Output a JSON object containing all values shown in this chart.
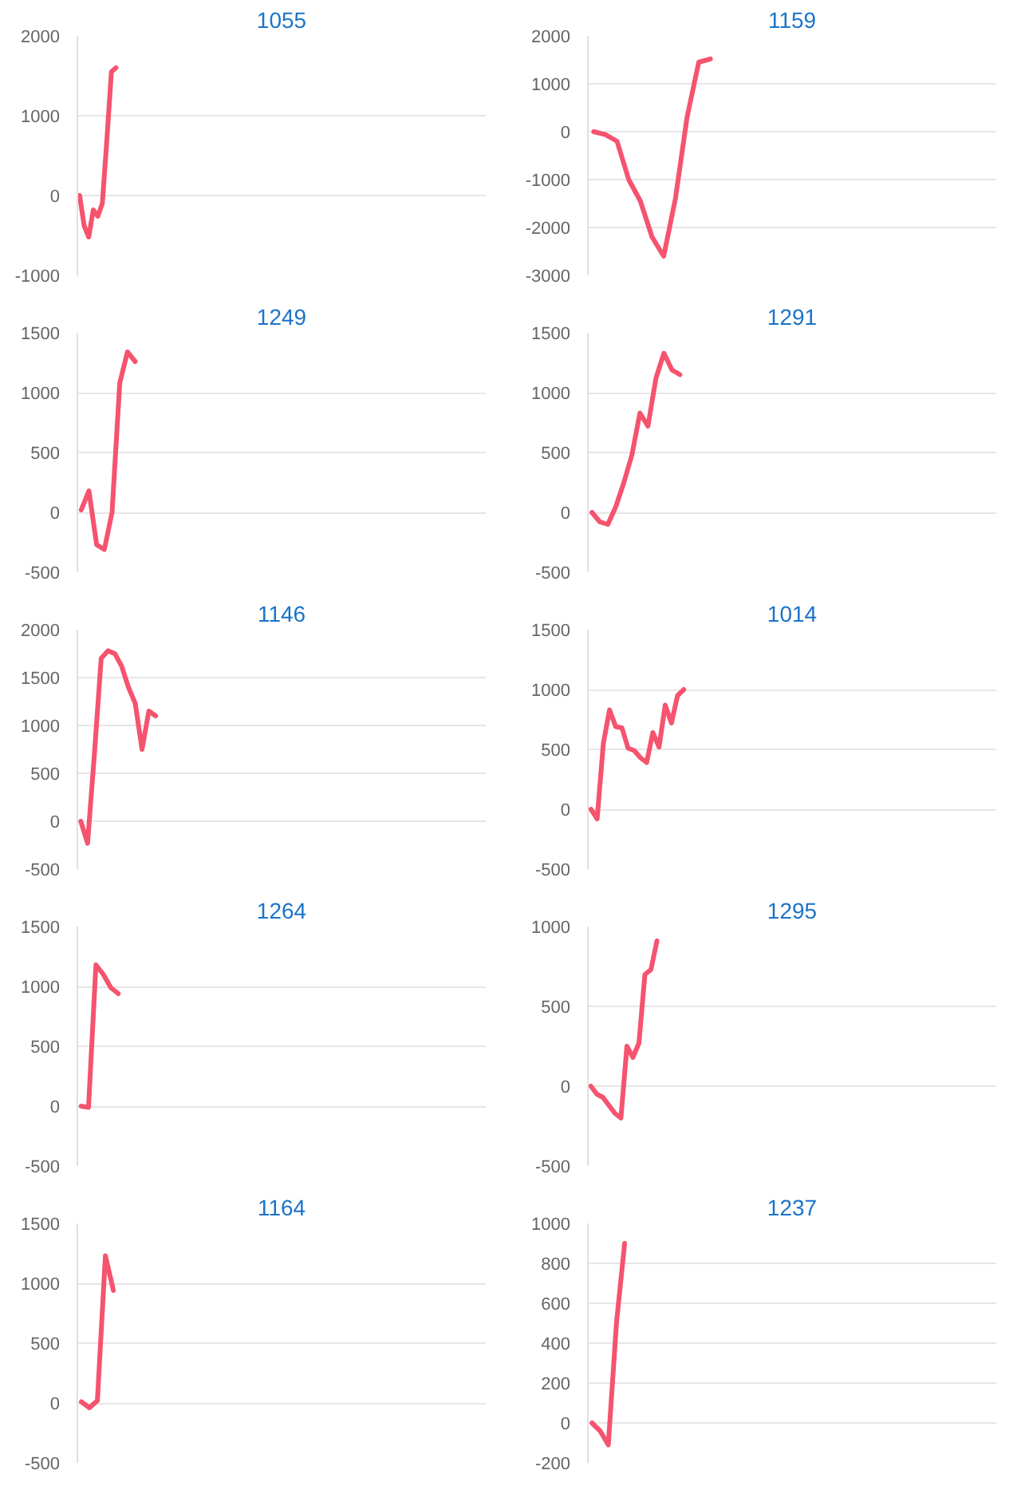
{
  "chart_data": [
    {
      "type": "line",
      "title": "1055",
      "color": "#f5536e",
      "grid": "y",
      "tick_labels": "y",
      "ylim": [
        -1000,
        2000
      ],
      "yticks": [
        -1000,
        0,
        1000,
        2000
      ],
      "categories": [
        null,
        null,
        null,
        null,
        null,
        null,
        null,
        null,
        null,
        null,
        null,
        null,
        null,
        null,
        null,
        null,
        null,
        null,
        null,
        null,
        null,
        null,
        null,
        null,
        null,
        null,
        null,
        null,
        null,
        null,
        null,
        null,
        null,
        null,
        null,
        null,
        null,
        null,
        null,
        null,
        null,
        null,
        null,
        null,
        null,
        null,
        null,
        null,
        null,
        null,
        null,
        null,
        null,
        null,
        null,
        null,
        null,
        null,
        null,
        null,
        null,
        null,
        null,
        null,
        null,
        null,
        null,
        null,
        null,
        null,
        null,
        null,
        null,
        null,
        null,
        null,
        null,
        null,
        null,
        null,
        null,
        null,
        null,
        null,
        null,
        null,
        null,
        null,
        null,
        null
      ],
      "values": [
        0,
        -380,
        -520,
        -180,
        -260,
        -100,
        700,
        1550,
        1600,
        null,
        null,
        null,
        null,
        null,
        null,
        null,
        null,
        null,
        null,
        null,
        null,
        null,
        null,
        null,
        null,
        null,
        null,
        null,
        null,
        null,
        null,
        null,
        null,
        null,
        null,
        null,
        null,
        null,
        null,
        null,
        null,
        null,
        null,
        null,
        null,
        null,
        null,
        null,
        null,
        null,
        null,
        null,
        null,
        null,
        null,
        null,
        null,
        null,
        null,
        null,
        null,
        null,
        null,
        null,
        null,
        null,
        null,
        null,
        null,
        null,
        null,
        null,
        null,
        null,
        null,
        null,
        null,
        null,
        null,
        null,
        null,
        null,
        null,
        null,
        null,
        null,
        null,
        null,
        null,
        null
      ]
    },
    {
      "type": "line",
      "title": "1159",
      "color": "#f5536e",
      "grid": "y",
      "tick_labels": "y",
      "ylim": [
        -3000,
        2000
      ],
      "yticks": [
        -3000,
        -2000,
        -1000,
        0,
        1000,
        2000
      ],
      "categories": [
        null,
        null,
        null,
        null,
        null,
        null,
        null,
        null,
        null,
        null,
        null,
        null,
        null,
        null,
        null,
        null,
        null,
        null,
        null,
        null,
        null,
        null,
        null,
        null,
        null,
        null,
        null,
        null,
        null,
        null,
        null,
        null,
        null,
        null,
        null
      ],
      "values": [
        0,
        -60,
        -200,
        -1000,
        -1450,
        -2200,
        -2600,
        -1400,
        300,
        1450,
        1520,
        null,
        null,
        null,
        null,
        null,
        null,
        null,
        null,
        null,
        null,
        null,
        null,
        null,
        null,
        null,
        null,
        null,
        null,
        null,
        null,
        null,
        null,
        null,
        null
      ]
    },
    {
      "type": "line",
      "title": "1249",
      "color": "#f5536e",
      "grid": "y",
      "tick_labels": "y",
      "ylim": [
        -500,
        1500
      ],
      "yticks": [
        -500,
        0,
        500,
        1000,
        1500
      ],
      "categories": [
        null,
        null,
        null,
        null,
        null,
        null,
        null,
        null,
        null,
        null,
        null,
        null,
        null,
        null,
        null,
        null,
        null,
        null,
        null,
        null,
        null,
        null,
        null,
        null,
        null,
        null,
        null,
        null,
        null,
        null,
        null,
        null,
        null,
        null,
        null,
        null,
        null,
        null,
        null,
        null,
        null,
        null,
        null,
        null,
        null,
        null,
        null,
        null,
        null,
        null,
        null,
        null,
        null
      ],
      "values": [
        20,
        180,
        -270,
        -310,
        0,
        1080,
        1340,
        1260,
        null,
        null,
        null,
        null,
        null,
        null,
        null,
        null,
        null,
        null,
        null,
        null,
        null,
        null,
        null,
        null,
        null,
        null,
        null,
        null,
        null,
        null,
        null,
        null,
        null,
        null,
        null,
        null,
        null,
        null,
        null,
        null,
        null,
        null,
        null,
        null,
        null,
        null,
        null,
        null,
        null,
        null,
        null,
        null,
        null
      ]
    },
    {
      "type": "line",
      "title": "1291",
      "color": "#f5536e",
      "grid": "y",
      "tick_labels": "y",
      "ylim": [
        -500,
        1500
      ],
      "yticks": [
        -500,
        0,
        500,
        1000,
        1500
      ],
      "categories": [
        null,
        null,
        null,
        null,
        null,
        null,
        null,
        null,
        null,
        null,
        null,
        null,
        null,
        null,
        null,
        null,
        null,
        null,
        null,
        null,
        null,
        null,
        null,
        null,
        null,
        null,
        null,
        null,
        null,
        null,
        null,
        null,
        null,
        null,
        null,
        null,
        null,
        null,
        null,
        null,
        null,
        null,
        null,
        null,
        null,
        null,
        null,
        null,
        null,
        null,
        null
      ],
      "values": [
        0,
        -80,
        -100,
        50,
        250,
        480,
        830,
        720,
        1120,
        1330,
        1190,
        1150,
        null,
        null,
        null,
        null,
        null,
        null,
        null,
        null,
        null,
        null,
        null,
        null,
        null,
        null,
        null,
        null,
        null,
        null,
        null,
        null,
        null,
        null,
        null,
        null,
        null,
        null,
        null,
        null,
        null,
        null,
        null,
        null,
        null,
        null,
        null,
        null,
        null,
        null,
        null
      ]
    },
    {
      "type": "line",
      "title": "1146",
      "color": "#f5536e",
      "grid": "y",
      "tick_labels": "y",
      "ylim": [
        -500,
        2000
      ],
      "yticks": [
        -500,
        0,
        500,
        1000,
        1500,
        2000
      ],
      "categories": [
        null,
        null,
        null,
        null,
        null,
        null,
        null,
        null,
        null,
        null,
        null,
        null,
        null,
        null,
        null,
        null,
        null,
        null,
        null,
        null,
        null,
        null,
        null,
        null,
        null,
        null,
        null,
        null,
        null,
        null,
        null,
        null,
        null,
        null,
        null,
        null,
        null,
        null,
        null,
        null,
        null,
        null,
        null,
        null,
        null,
        null,
        null,
        null,
        null,
        null,
        null,
        null,
        null,
        null,
        null,
        null,
        null,
        null,
        null,
        null
      ],
      "values": [
        0,
        -230,
        700,
        1700,
        1780,
        1750,
        1620,
        1400,
        1230,
        750,
        1150,
        1100,
        null,
        null,
        null,
        null,
        null,
        null,
        null,
        null,
        null,
        null,
        null,
        null,
        null,
        null,
        null,
        null,
        null,
        null,
        null,
        null,
        null,
        null,
        null,
        null,
        null,
        null,
        null,
        null,
        null,
        null,
        null,
        null,
        null,
        null,
        null,
        null,
        null,
        null,
        null,
        null,
        null,
        null,
        null,
        null,
        null,
        null,
        null,
        null
      ]
    },
    {
      "type": "line",
      "title": "1014",
      "color": "#f5536e",
      "grid": "y",
      "tick_labels": "y",
      "ylim": [
        -500,
        1500
      ],
      "yticks": [
        -500,
        0,
        500,
        1000,
        1500
      ],
      "categories": [
        null,
        null,
        null,
        null,
        null,
        null,
        null,
        null,
        null,
        null,
        null,
        null,
        null,
        null,
        null,
        null,
        null,
        null,
        null,
        null,
        null,
        null,
        null,
        null,
        null,
        null,
        null,
        null,
        null,
        null,
        null,
        null,
        null,
        null,
        null,
        null,
        null,
        null,
        null,
        null,
        null,
        null,
        null,
        null,
        null,
        null,
        null,
        null,
        null,
        null,
        null,
        null,
        null,
        null,
        null,
        null,
        null,
        null,
        null,
        null,
        null,
        null,
        null,
        null,
        null,
        null
      ],
      "values": [
        0,
        -80,
        550,
        830,
        690,
        680,
        510,
        490,
        430,
        390,
        640,
        520,
        870,
        720,
        950,
        1000,
        null,
        null,
        null,
        null,
        null,
        null,
        null,
        null,
        null,
        null,
        null,
        null,
        null,
        null,
        null,
        null,
        null,
        null,
        null,
        null,
        null,
        null,
        null,
        null,
        null,
        null,
        null,
        null,
        null,
        null,
        null,
        null,
        null,
        null,
        null,
        null,
        null,
        null,
        null,
        null,
        null,
        null,
        null,
        null,
        null,
        null,
        null,
        null,
        null,
        null
      ]
    },
    {
      "type": "line",
      "title": "1264",
      "color": "#f5536e",
      "grid": "y",
      "tick_labels": "y",
      "ylim": [
        -500,
        1500
      ],
      "yticks": [
        -500,
        0,
        500,
        1000,
        1500
      ],
      "categories": [
        null,
        null,
        null,
        null,
        null,
        null,
        null,
        null,
        null,
        null,
        null,
        null,
        null,
        null,
        null,
        null,
        null,
        null,
        null,
        null,
        null,
        null,
        null,
        null,
        null,
        null,
        null,
        null,
        null,
        null,
        null,
        null,
        null,
        null,
        null,
        null,
        null,
        null,
        null,
        null,
        null,
        null,
        null,
        null,
        null,
        null,
        null,
        null,
        null,
        null,
        null,
        null,
        null,
        null,
        null
      ],
      "values": [
        0,
        -10,
        1180,
        1100,
        990,
        940,
        null,
        null,
        null,
        null,
        null,
        null,
        null,
        null,
        null,
        null,
        null,
        null,
        null,
        null,
        null,
        null,
        null,
        null,
        null,
        null,
        null,
        null,
        null,
        null,
        null,
        null,
        null,
        null,
        null,
        null,
        null,
        null,
        null,
        null,
        null,
        null,
        null,
        null,
        null,
        null,
        null,
        null,
        null,
        null,
        null,
        null,
        null,
        null,
        null
      ]
    },
    {
      "type": "line",
      "title": "1295",
      "color": "#f5536e",
      "grid": "y",
      "tick_labels": "y",
      "ylim": [
        -500,
        1000
      ],
      "yticks": [
        -500,
        0,
        500,
        1000
      ],
      "categories": [
        null,
        null,
        null,
        null,
        null,
        null,
        null,
        null,
        null,
        null,
        null,
        null,
        null,
        null,
        null,
        null,
        null,
        null,
        null,
        null,
        null,
        null,
        null,
        null,
        null,
        null,
        null,
        null,
        null,
        null,
        null,
        null,
        null,
        null,
        null,
        null,
        null,
        null,
        null,
        null,
        null,
        null,
        null,
        null,
        null,
        null,
        null,
        null,
        null,
        null,
        null,
        null,
        null,
        null,
        null,
        null,
        null,
        null,
        null,
        null,
        null,
        null,
        null,
        null,
        null,
        null,
        null,
        null
      ],
      "values": [
        0,
        -50,
        -70,
        -120,
        -170,
        -200,
        250,
        180,
        270,
        700,
        730,
        910,
        null,
        null,
        null,
        null,
        null,
        null,
        null,
        null,
        null,
        null,
        null,
        null,
        null,
        null,
        null,
        null,
        null,
        null,
        null,
        null,
        null,
        null,
        null,
        null,
        null,
        null,
        null,
        null,
        null,
        null,
        null,
        null,
        null,
        null,
        null,
        null,
        null,
        null,
        null,
        null,
        null,
        null,
        null,
        null,
        null,
        null,
        null,
        null,
        null,
        null,
        null,
        null,
        null,
        null,
        null,
        null
      ]
    },
    {
      "type": "line",
      "title": "1164",
      "color": "#f5536e",
      "grid": "y",
      "tick_labels": "y",
      "ylim": [
        -500,
        1500
      ],
      "yticks": [
        -500,
        0,
        500,
        1000,
        1500
      ],
      "categories": [
        null,
        null,
        null,
        null,
        null,
        null,
        null,
        null,
        null,
        null,
        null,
        null,
        null,
        null,
        null,
        null,
        null,
        null,
        null,
        null,
        null,
        null,
        null,
        null,
        null,
        null,
        null,
        null,
        null,
        null,
        null,
        null,
        null,
        null,
        null,
        null,
        null,
        null,
        null,
        null,
        null,
        null,
        null,
        null,
        null,
        null,
        null,
        null,
        null,
        null,
        null
      ],
      "values": [
        10,
        -40,
        20,
        1230,
        940,
        null,
        null,
        null,
        null,
        null,
        null,
        null,
        null,
        null,
        null,
        null,
        null,
        null,
        null,
        null,
        null,
        null,
        null,
        null,
        null,
        null,
        null,
        null,
        null,
        null,
        null,
        null,
        null,
        null,
        null,
        null,
        null,
        null,
        null,
        null,
        null,
        null,
        null,
        null,
        null,
        null,
        null,
        null,
        null,
        null,
        null
      ]
    },
    {
      "type": "line",
      "title": "1237",
      "color": "#f5536e",
      "grid": "y",
      "tick_labels": "y",
      "ylim": [
        -200,
        1000
      ],
      "yticks": [
        -200,
        0,
        200,
        400,
        600,
        800,
        1000
      ],
      "categories": [
        null,
        null,
        null,
        null,
        null,
        null,
        null,
        null,
        null,
        null,
        null,
        null,
        null,
        null,
        null,
        null,
        null,
        null,
        null,
        null,
        null,
        null,
        null,
        null,
        null,
        null,
        null,
        null,
        null,
        null,
        null,
        null,
        null,
        null,
        null,
        null,
        null,
        null,
        null,
        null,
        null,
        null,
        null,
        null,
        null,
        null,
        null,
        null,
        null,
        null
      ],
      "values": [
        0,
        -40,
        -110,
        500,
        900,
        null,
        null,
        null,
        null,
        null,
        null,
        null,
        null,
        null,
        null,
        null,
        null,
        null,
        null,
        null,
        null,
        null,
        null,
        null,
        null,
        null,
        null,
        null,
        null,
        null,
        null,
        null,
        null,
        null,
        null,
        null,
        null,
        null,
        null,
        null,
        null,
        null,
        null,
        null,
        null,
        null,
        null,
        null,
        null,
        null
      ]
    }
  ]
}
